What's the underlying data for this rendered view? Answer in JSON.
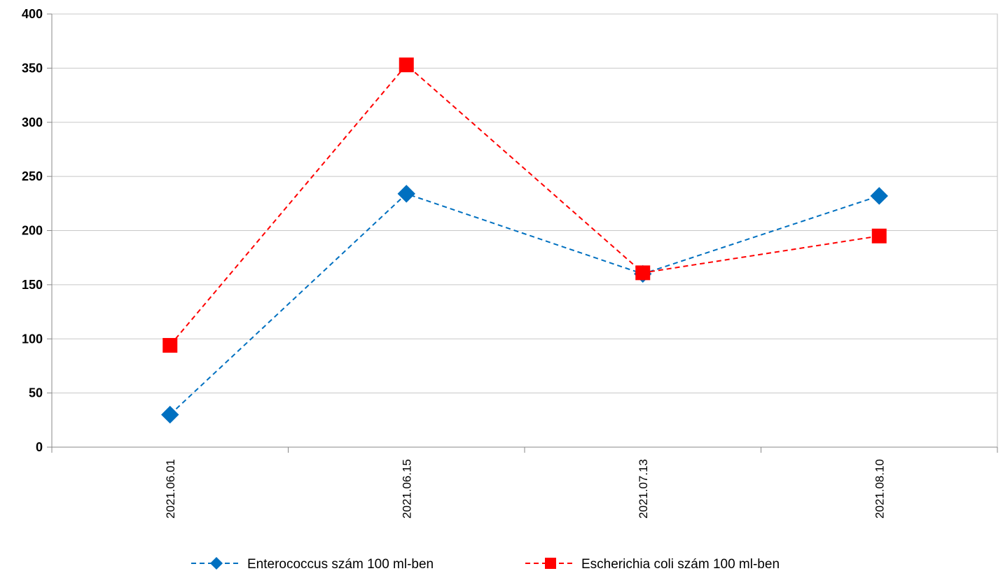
{
  "chart_data": {
    "type": "line",
    "categories": [
      "2021.06.01",
      "2021.06.15",
      "2021.07.13",
      "2021.08.10"
    ],
    "series": [
      {
        "name": "Enterococcus szám 100 ml-ben",
        "values": [
          30,
          234,
          160,
          232
        ],
        "color": "#0070C0",
        "marker": "diamond",
        "line_style": "dashed"
      },
      {
        "name": "Escherichia coli szám 100 ml-ben",
        "values": [
          94,
          353,
          161,
          195
        ],
        "color": "#FF0000",
        "marker": "square",
        "line_style": "dashed"
      }
    ],
    "yticks": [
      0,
      50,
      100,
      150,
      200,
      250,
      300,
      350,
      400
    ],
    "ylim": [
      0,
      400
    ],
    "grid": true,
    "legend_position": "bottom"
  }
}
